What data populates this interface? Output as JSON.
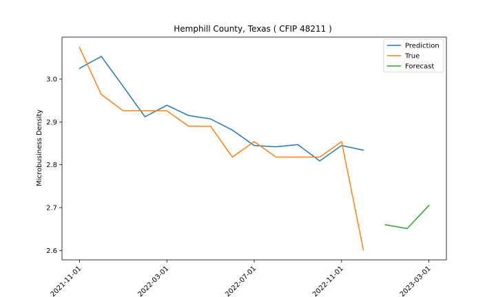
{
  "chart_data": {
    "type": "line",
    "title": "Hemphill County, Texas ( CFIP 48211 )",
    "xlabel": "",
    "ylabel": "Microbusiness Density",
    "x_tick_labels": [
      "2021-11-01",
      "2022-03-01",
      "2022-07-01",
      "2022-11-01",
      "2023-03-01"
    ],
    "x_tick_values": [
      0,
      4,
      8,
      12,
      16
    ],
    "y_tick_labels": [
      "2.6",
      "2.7",
      "2.8",
      "2.9",
      "3.0"
    ],
    "y_tick_values": [
      2.6,
      2.7,
      2.8,
      2.9,
      3.0
    ],
    "xlim": [
      -0.8,
      16.8
    ],
    "ylim": [
      2.578,
      3.098
    ],
    "grid": false,
    "legend_position": "top-right",
    "series": [
      {
        "name": "Prediction",
        "color": "#1f77b4",
        "x": [
          0,
          1,
          2,
          3,
          4,
          5,
          6,
          7,
          8,
          9,
          10,
          11,
          12,
          13
        ],
        "y": [
          3.025,
          3.053,
          2.983,
          2.912,
          2.939,
          2.915,
          2.907,
          2.881,
          2.845,
          2.842,
          2.847,
          2.809,
          2.845,
          2.834
        ]
      },
      {
        "name": "True",
        "color": "#ff7f0e",
        "x": [
          0,
          1,
          2,
          3,
          4,
          5,
          6,
          7,
          8,
          9,
          10,
          11,
          12,
          13
        ],
        "y": [
          3.074,
          2.964,
          2.926,
          2.926,
          2.926,
          2.89,
          2.89,
          2.818,
          2.854,
          2.818,
          2.818,
          2.818,
          2.854,
          2.601
        ]
      },
      {
        "name": "Forecast",
        "color": "#2ca02c",
        "x": [
          14,
          15,
          16
        ],
        "y": [
          2.66,
          2.651,
          2.705
        ]
      }
    ]
  }
}
